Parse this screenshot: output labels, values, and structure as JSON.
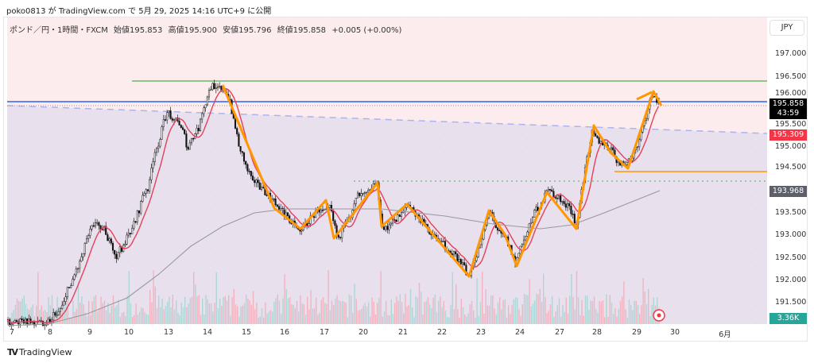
{
  "published": "poko0813 が TradingView.com で 5月 29, 2025 14:16 UTC+9 に公開",
  "legend": {
    "symbol": "ポンド／円・1時間・FXCM",
    "open": "始値195.853",
    "high": "高値195.900",
    "low": "安値195.796",
    "close": "終値195.858",
    "change": "+0.005 (+0.00%)"
  },
  "currency": "JPY",
  "price_axis": [
    "197.000",
    "196.500",
    "196.000",
    "195.500",
    "195.000",
    "194.500",
    "193.500",
    "193.000",
    "192.500",
    "192.000",
    "191.500"
  ],
  "tags": {
    "last_price": "195.858",
    "countdown": "43:59",
    "ma_fast": "195.309",
    "ma_slow": "193.968",
    "volume": "3.36K"
  },
  "time_axis": [
    "7",
    "8",
    "9",
    "10",
    "13",
    "14",
    "15",
    "16",
    "17",
    "20",
    "21",
    "22",
    "23",
    "24",
    "27",
    "28",
    "29",
    "30",
    "6月"
  ],
  "brand": "TradingView",
  "colors": {
    "up_zone": "#fdeced",
    "down_zone": "#e9e0ee",
    "resistance": "#4caf50",
    "current": "#2962ff",
    "ma_fast": "#e5405a",
    "ma_slow": "#999999",
    "zigzag": "#ff9800",
    "last_tag": "#000000",
    "ma_tag": "#f23645",
    "vol_tag": "#26a69a"
  }
}
